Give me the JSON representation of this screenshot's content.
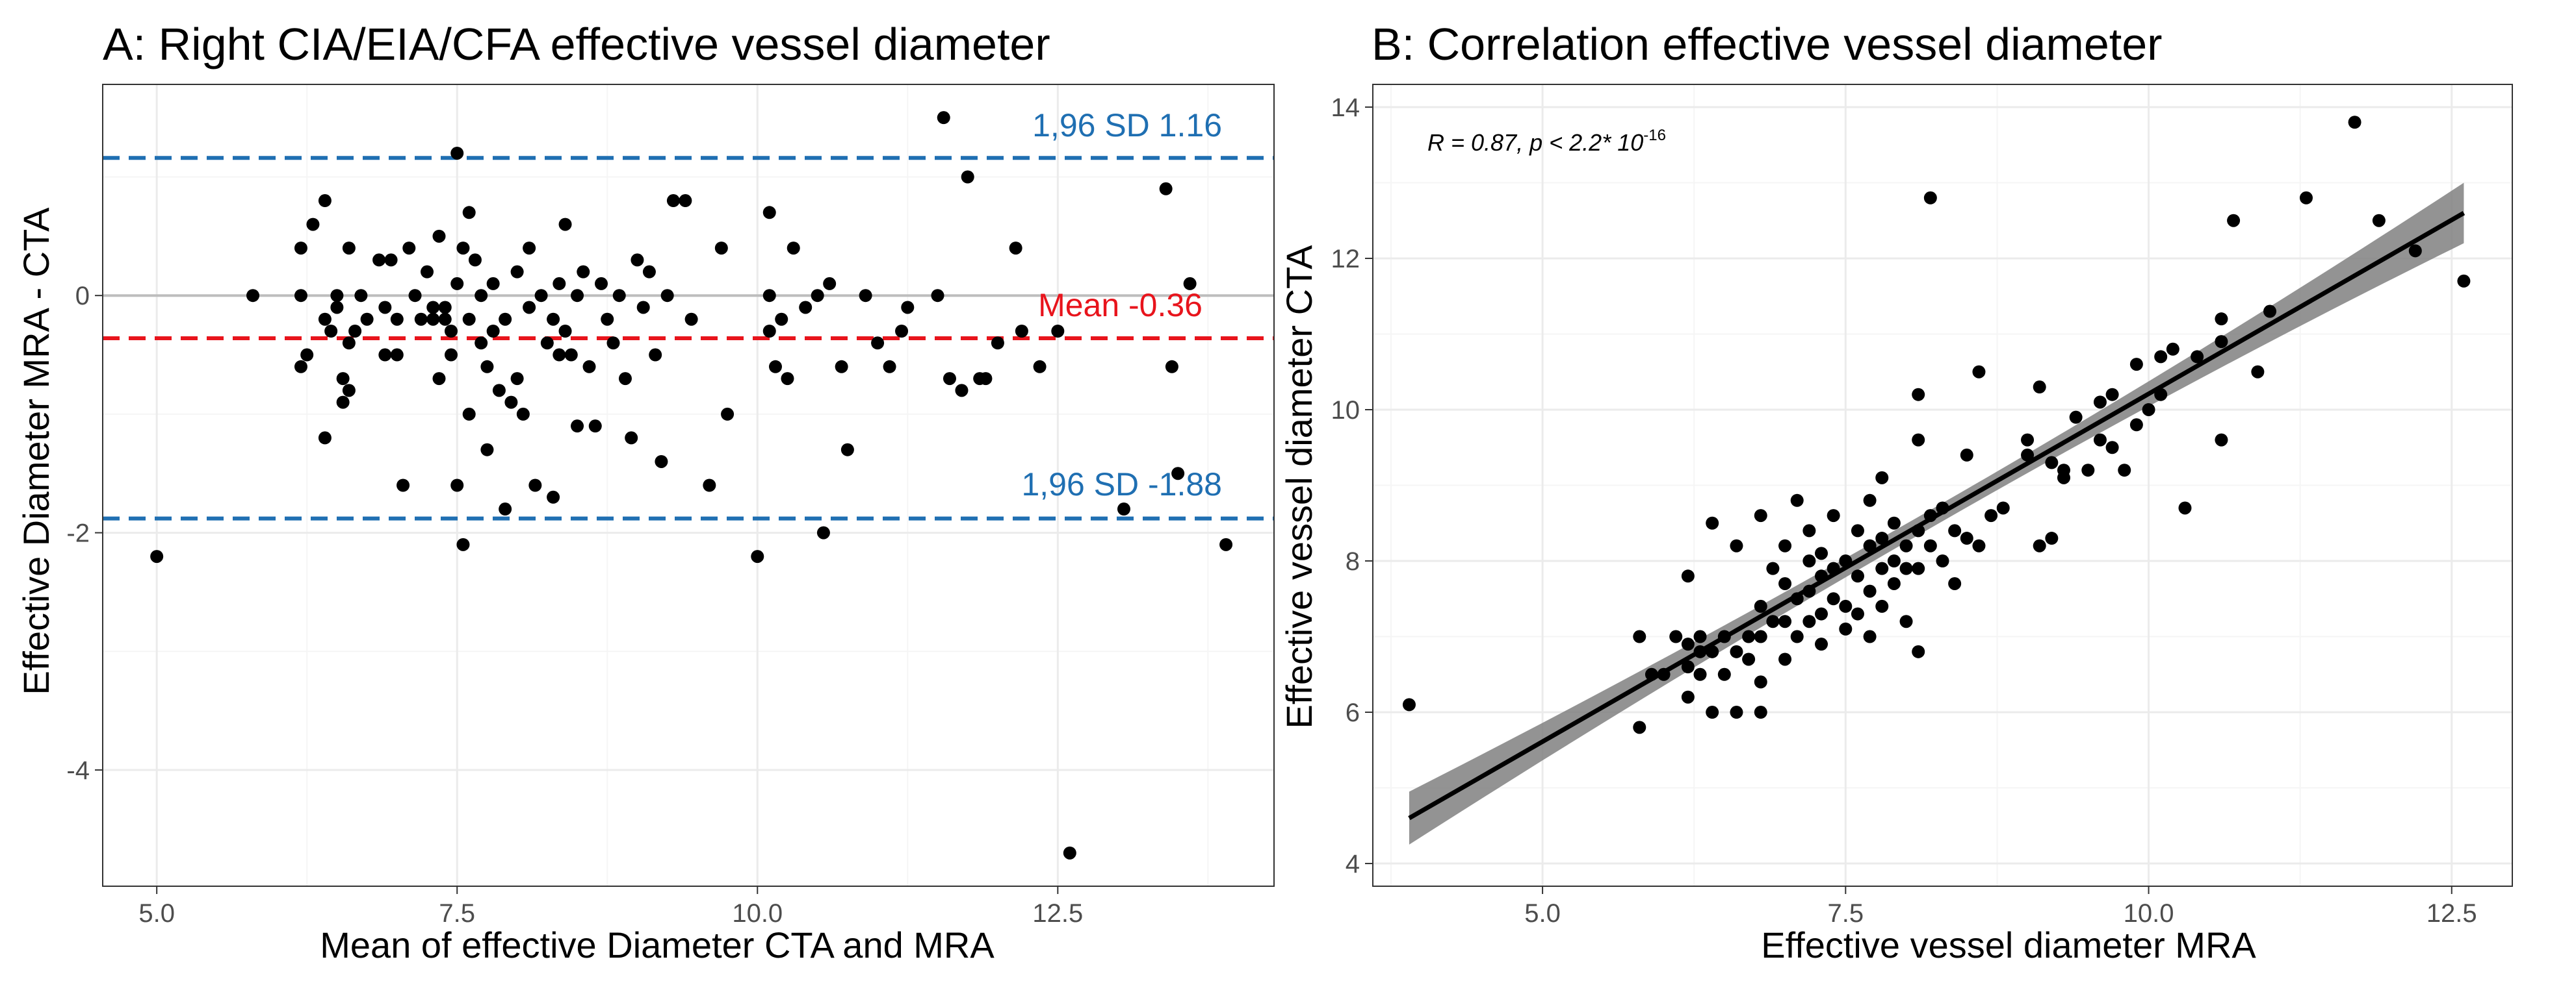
{
  "chart_data": [
    {
      "type": "scatter",
      "title": "A: Right CIA/EIA/CFA effective vessel diameter",
      "xlabel": "Mean of effective Diameter CTA and MRA",
      "ylabel": "Effective Diameter MRA - CTA",
      "xlim": [
        4.55,
        14.3
      ],
      "ylim": [
        -4.98,
        1.78
      ],
      "x_ticks": [
        5.0,
        7.5,
        10.0,
        12.5
      ],
      "x_tick_labels": [
        "5.0",
        "7.5",
        "10.0",
        "12.5"
      ],
      "y_ticks": [
        0,
        -2,
        -4
      ],
      "y_tick_labels": [
        "0",
        "-2",
        "-4"
      ],
      "reference_lines": [
        {
          "name": "zero",
          "value": 0,
          "color": "#bdbdbd",
          "style": "solid"
        },
        {
          "name": "upper-loa",
          "value": 1.16,
          "color": "#1f6fb2",
          "style": "dashed",
          "label": "1,96 SD  1.16"
        },
        {
          "name": "mean",
          "value": -0.36,
          "color": "#e8141c",
          "style": "dashed",
          "label": "Mean -0.36"
        },
        {
          "name": "lower-loa",
          "value": -1.88,
          "color": "#1f6fb2",
          "style": "dashed",
          "label": "1,96 SD -1.88"
        }
      ],
      "points": [
        [
          5.0,
          -2.2
        ],
        [
          5.8,
          0.0
        ],
        [
          6.2,
          0.4
        ],
        [
          6.2,
          0.0
        ],
        [
          6.2,
          -0.6
        ],
        [
          6.25,
          -0.5
        ],
        [
          6.3,
          0.6
        ],
        [
          6.4,
          0.8
        ],
        [
          6.4,
          -0.2
        ],
        [
          6.4,
          -1.2
        ],
        [
          6.45,
          -0.3
        ],
        [
          6.5,
          0.0
        ],
        [
          6.5,
          -0.1
        ],
        [
          6.55,
          -0.7
        ],
        [
          6.55,
          -0.9
        ],
        [
          6.6,
          0.4
        ],
        [
          6.6,
          -0.8
        ],
        [
          6.6,
          -0.4
        ],
        [
          6.65,
          -0.3
        ],
        [
          6.7,
          0.0
        ],
        [
          6.75,
          -0.2
        ],
        [
          6.85,
          0.3
        ],
        [
          6.9,
          -0.1
        ],
        [
          6.9,
          -0.5
        ],
        [
          6.95,
          0.3
        ],
        [
          7.0,
          -0.2
        ],
        [
          7.0,
          -0.5
        ],
        [
          7.05,
          -1.6
        ],
        [
          7.1,
          0.4
        ],
        [
          7.15,
          0.0
        ],
        [
          7.2,
          -0.2
        ],
        [
          7.25,
          0.2
        ],
        [
          7.3,
          -0.1
        ],
        [
          7.3,
          -0.2
        ],
        [
          7.35,
          0.5
        ],
        [
          7.35,
          -0.7
        ],
        [
          7.4,
          -0.1
        ],
        [
          7.4,
          -0.2
        ],
        [
          7.45,
          -0.3
        ],
        [
          7.45,
          -0.5
        ],
        [
          7.5,
          1.2
        ],
        [
          7.5,
          0.1
        ],
        [
          7.5,
          -1.6
        ],
        [
          7.55,
          0.4
        ],
        [
          7.55,
          -2.1
        ],
        [
          7.6,
          0.7
        ],
        [
          7.6,
          -0.2
        ],
        [
          7.6,
          -1.0
        ],
        [
          7.65,
          0.3
        ],
        [
          7.7,
          0.0
        ],
        [
          7.7,
          -0.4
        ],
        [
          7.75,
          -0.6
        ],
        [
          7.75,
          -1.3
        ],
        [
          7.8,
          0.1
        ],
        [
          7.8,
          -0.3
        ],
        [
          7.85,
          -0.8
        ],
        [
          7.9,
          -0.2
        ],
        [
          7.9,
          -1.8
        ],
        [
          7.95,
          -0.9
        ],
        [
          8.0,
          0.2
        ],
        [
          8.0,
          -0.7
        ],
        [
          8.05,
          -1.0
        ],
        [
          8.1,
          0.4
        ],
        [
          8.1,
          -0.1
        ],
        [
          8.15,
          -1.6
        ],
        [
          8.2,
          0.0
        ],
        [
          8.25,
          -0.4
        ],
        [
          8.3,
          -0.2
        ],
        [
          8.3,
          -1.7
        ],
        [
          8.35,
          0.1
        ],
        [
          8.35,
          -0.5
        ],
        [
          8.4,
          0.6
        ],
        [
          8.4,
          -0.3
        ],
        [
          8.45,
          -0.5
        ],
        [
          8.5,
          0.0
        ],
        [
          8.5,
          -1.1
        ],
        [
          8.55,
          0.2
        ],
        [
          8.6,
          -0.6
        ],
        [
          8.65,
          -1.1
        ],
        [
          8.7,
          0.1
        ],
        [
          8.75,
          -0.2
        ],
        [
          8.8,
          -0.4
        ],
        [
          8.85,
          0.0
        ],
        [
          8.9,
          -0.7
        ],
        [
          8.95,
          -1.2
        ],
        [
          9.0,
          0.3
        ],
        [
          9.05,
          -0.1
        ],
        [
          9.1,
          0.2
        ],
        [
          9.15,
          -0.5
        ],
        [
          9.2,
          -1.4
        ],
        [
          9.25,
          0.0
        ],
        [
          9.3,
          0.8
        ],
        [
          9.4,
          0.8
        ],
        [
          9.45,
          -0.2
        ],
        [
          9.6,
          -1.6
        ],
        [
          9.7,
          0.4
        ],
        [
          9.75,
          -1.0
        ],
        [
          10.0,
          -2.2
        ],
        [
          10.1,
          0.7
        ],
        [
          10.1,
          0.0
        ],
        [
          10.1,
          -0.3
        ],
        [
          10.15,
          -0.6
        ],
        [
          10.2,
          -0.2
        ],
        [
          10.25,
          -0.7
        ],
        [
          10.3,
          0.4
        ],
        [
          10.4,
          -0.1
        ],
        [
          10.5,
          0.0
        ],
        [
          10.55,
          -2.0
        ],
        [
          10.6,
          0.1
        ],
        [
          10.7,
          -0.6
        ],
        [
          10.75,
          -1.3
        ],
        [
          10.9,
          0.0
        ],
        [
          11.0,
          -0.4
        ],
        [
          11.1,
          -0.6
        ],
        [
          11.2,
          -0.3
        ],
        [
          11.25,
          -0.1
        ],
        [
          11.5,
          0.0
        ],
        [
          11.55,
          1.5
        ],
        [
          11.6,
          -0.7
        ],
        [
          11.7,
          -0.8
        ],
        [
          11.75,
          1.0
        ],
        [
          11.85,
          -0.7
        ],
        [
          11.9,
          -0.7
        ],
        [
          12.0,
          -0.4
        ],
        [
          12.15,
          0.4
        ],
        [
          12.2,
          -0.3
        ],
        [
          12.35,
          -0.6
        ],
        [
          12.5,
          -0.3
        ],
        [
          13.05,
          -1.8
        ],
        [
          13.4,
          0.9
        ],
        [
          13.45,
          -0.6
        ],
        [
          13.5,
          -1.5
        ],
        [
          13.6,
          0.1
        ],
        [
          13.9,
          -2.1
        ],
        [
          12.6,
          -4.7
        ]
      ]
    },
    {
      "type": "scatter",
      "title": "B: Correlation effective vessel diameter",
      "xlabel": "Effective vessel diameter MRA",
      "ylabel": "Effective vessel diameter CTA",
      "xlim": [
        3.6,
        13.0
      ],
      "ylim": [
        3.7,
        14.3
      ],
      "x_ticks": [
        5.0,
        7.5,
        10.0,
        12.5
      ],
      "x_tick_labels": [
        "5.0",
        "7.5",
        "10.0",
        "12.5"
      ],
      "y_ticks": [
        4,
        6,
        8,
        10,
        12,
        14
      ],
      "y_tick_labels": [
        "4",
        "6",
        "8",
        "10",
        "12",
        "14"
      ],
      "stat_label": {
        "r": "R = 0.87, ",
        "p": "p < 2.2* 10",
        "exp": "-16"
      },
      "regression": {
        "x": [
          3.9,
          12.6
        ],
        "y": [
          4.6,
          12.6
        ],
        "ci_halfwidth_start": 0.35,
        "ci_halfwidth_mid": 0.12,
        "ci_halfwidth_end": 0.4,
        "line_color": "#000000",
        "band_color": "#808080"
      },
      "points": [
        [
          3.9,
          6.1
        ],
        [
          5.8,
          5.8
        ],
        [
          5.8,
          7.0
        ],
        [
          5.9,
          6.5
        ],
        [
          6.0,
          6.5
        ],
        [
          6.1,
          7.0
        ],
        [
          6.2,
          7.8
        ],
        [
          6.2,
          6.9
        ],
        [
          6.2,
          6.6
        ],
        [
          6.2,
          6.2
        ],
        [
          6.3,
          6.8
        ],
        [
          6.3,
          6.5
        ],
        [
          6.3,
          7.0
        ],
        [
          6.4,
          8.5
        ],
        [
          6.4,
          6.0
        ],
        [
          6.4,
          6.8
        ],
        [
          6.5,
          6.5
        ],
        [
          6.5,
          7.0
        ],
        [
          6.6,
          8.2
        ],
        [
          6.6,
          6.8
        ],
        [
          6.6,
          6.0
        ],
        [
          6.7,
          7.0
        ],
        [
          6.7,
          6.7
        ],
        [
          6.8,
          8.6
        ],
        [
          6.8,
          7.4
        ],
        [
          6.8,
          7.0
        ],
        [
          6.8,
          6.0
        ],
        [
          6.8,
          6.4
        ],
        [
          6.9,
          7.2
        ],
        [
          6.9,
          7.9
        ],
        [
          7.0,
          7.7
        ],
        [
          7.0,
          7.2
        ],
        [
          7.0,
          6.7
        ],
        [
          7.0,
          8.2
        ],
        [
          7.1,
          8.8
        ],
        [
          7.1,
          7.5
        ],
        [
          7.1,
          7.0
        ],
        [
          7.2,
          8.4
        ],
        [
          7.2,
          8.0
        ],
        [
          7.2,
          7.6
        ],
        [
          7.2,
          7.2
        ],
        [
          7.3,
          8.1
        ],
        [
          7.3,
          7.8
        ],
        [
          7.3,
          7.3
        ],
        [
          7.3,
          6.9
        ],
        [
          7.4,
          8.6
        ],
        [
          7.4,
          7.9
        ],
        [
          7.4,
          7.5
        ],
        [
          7.5,
          8.0
        ],
        [
          7.5,
          7.4
        ],
        [
          7.5,
          7.1
        ],
        [
          7.6,
          8.4
        ],
        [
          7.6,
          7.8
        ],
        [
          7.6,
          7.3
        ],
        [
          7.7,
          8.8
        ],
        [
          7.7,
          8.2
        ],
        [
          7.7,
          7.6
        ],
        [
          7.7,
          7.0
        ],
        [
          7.8,
          9.1
        ],
        [
          7.8,
          8.3
        ],
        [
          7.8,
          7.9
        ],
        [
          7.8,
          7.4
        ],
        [
          7.9,
          8.5
        ],
        [
          7.9,
          8.0
        ],
        [
          7.9,
          7.7
        ],
        [
          8.0,
          8.2
        ],
        [
          8.0,
          7.9
        ],
        [
          8.0,
          7.2
        ],
        [
          8.1,
          10.2
        ],
        [
          8.1,
          9.6
        ],
        [
          8.1,
          8.4
        ],
        [
          8.1,
          7.9
        ],
        [
          8.1,
          6.8
        ],
        [
          8.2,
          12.8
        ],
        [
          8.2,
          8.6
        ],
        [
          8.2,
          8.2
        ],
        [
          8.3,
          8.7
        ],
        [
          8.3,
          8.0
        ],
        [
          8.4,
          8.4
        ],
        [
          8.4,
          7.7
        ],
        [
          8.5,
          9.4
        ],
        [
          8.5,
          8.3
        ],
        [
          8.6,
          10.5
        ],
        [
          8.6,
          8.2
        ],
        [
          8.7,
          8.6
        ],
        [
          8.8,
          8.7
        ],
        [
          9.0,
          9.6
        ],
        [
          9.0,
          9.4
        ],
        [
          9.1,
          8.2
        ],
        [
          9.1,
          10.3
        ],
        [
          9.2,
          9.3
        ],
        [
          9.2,
          8.3
        ],
        [
          9.3,
          9.1
        ],
        [
          9.3,
          9.2
        ],
        [
          9.4,
          9.9
        ],
        [
          9.5,
          9.2
        ],
        [
          9.6,
          10.1
        ],
        [
          9.6,
          9.6
        ],
        [
          9.7,
          9.5
        ],
        [
          9.7,
          10.2
        ],
        [
          9.8,
          9.2
        ],
        [
          9.9,
          10.6
        ],
        [
          9.9,
          9.8
        ],
        [
          10.0,
          10.0
        ],
        [
          10.1,
          10.7
        ],
        [
          10.1,
          10.2
        ],
        [
          10.2,
          10.8
        ],
        [
          10.3,
          8.7
        ],
        [
          10.4,
          10.7
        ],
        [
          10.6,
          10.9
        ],
        [
          10.6,
          9.6
        ],
        [
          10.6,
          11.2
        ],
        [
          10.7,
          12.5
        ],
        [
          10.9,
          10.5
        ],
        [
          11.0,
          11.3
        ],
        [
          11.3,
          12.8
        ],
        [
          11.7,
          13.8
        ],
        [
          11.9,
          12.5
        ],
        [
          12.2,
          12.1
        ],
        [
          12.6,
          11.7
        ]
      ]
    }
  ]
}
